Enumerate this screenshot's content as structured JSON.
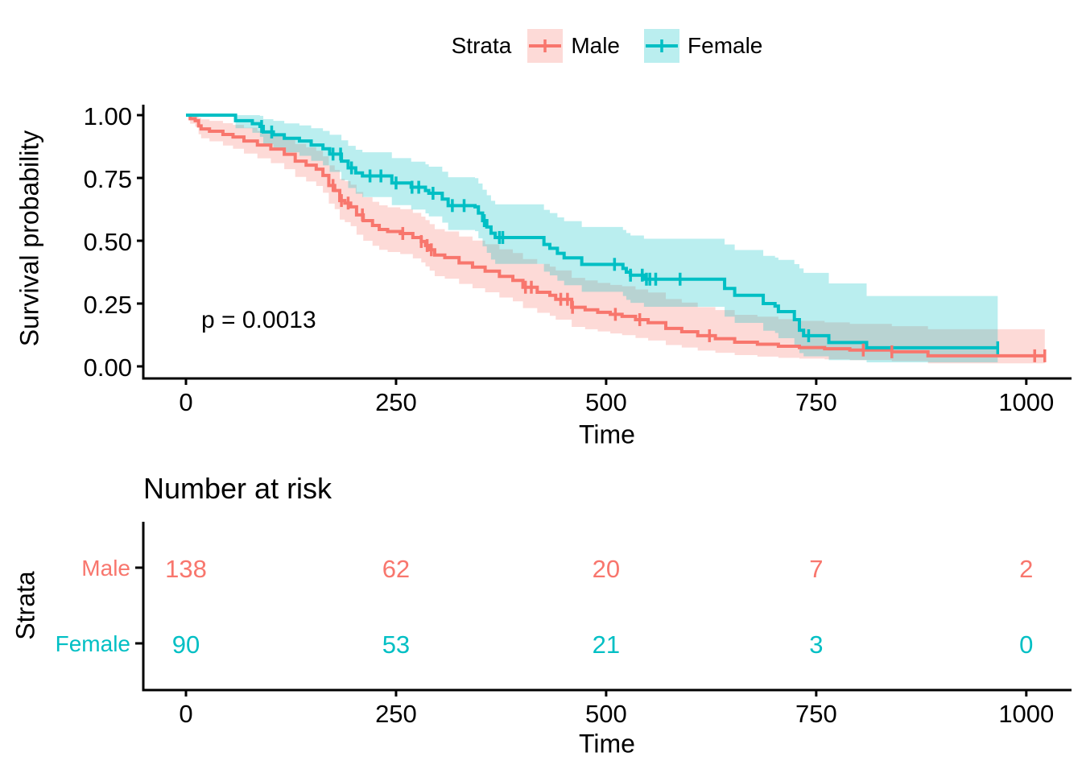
{
  "chart_data": {
    "type": "line",
    "subtype": "kaplan_meier_step_curves_with_ci_and_risk_table",
    "title": "",
    "legend": {
      "title": "Strata",
      "entries": [
        {
          "label": "Male",
          "color": "#F8766D",
          "fill": "rgba(248,118,109,0.27)"
        },
        {
          "label": "Female",
          "color": "#00BFC4",
          "fill": "rgba(0,191,196,0.27)"
        }
      ],
      "position": "top"
    },
    "x": {
      "label": "Time",
      "ticks": [
        0,
        250,
        500,
        750,
        1000
      ],
      "range": [
        0,
        1022
      ]
    },
    "y": {
      "label": "Survival probability",
      "ticks": [
        {
          "v": 1.0,
          "label": "1.00"
        },
        {
          "v": 0.75,
          "label": "0.75"
        },
        {
          "v": 0.5,
          "label": "0.50"
        },
        {
          "v": 0.25,
          "label": "0.25"
        },
        {
          "v": 0.0,
          "label": "0.00"
        }
      ],
      "range": [
        0,
        1
      ]
    },
    "pvalue": "p = 0.0013",
    "grid": false,
    "series": [
      {
        "name": "Male",
        "color": "#F8766D",
        "fill": "rgba(248,118,109,0.27)",
        "steps": [
          [
            0,
            1.0,
            1.0,
            1.0
          ],
          [
            5,
            0.986,
            0.966,
            1.0
          ],
          [
            11,
            0.978,
            0.954,
            1.0
          ],
          [
            15,
            0.957,
            0.924,
            0.99
          ],
          [
            18,
            0.945,
            0.908,
            0.983
          ],
          [
            28,
            0.936,
            0.896,
            0.977
          ],
          [
            44,
            0.923,
            0.879,
            0.968
          ],
          [
            56,
            0.913,
            0.866,
            0.961
          ],
          [
            69,
            0.897,
            0.847,
            0.95
          ],
          [
            85,
            0.881,
            0.828,
            0.937
          ],
          [
            101,
            0.865,
            0.809,
            0.925
          ],
          [
            117,
            0.844,
            0.785,
            0.908
          ],
          [
            130,
            0.817,
            0.754,
            0.885
          ],
          [
            143,
            0.801,
            0.736,
            0.872
          ],
          [
            155,
            0.785,
            0.718,
            0.858
          ],
          [
            163,
            0.76,
            0.691,
            0.836
          ],
          [
            170,
            0.72,
            0.648,
            0.8
          ],
          [
            177,
            0.7,
            0.626,
            0.782
          ],
          [
            183,
            0.66,
            0.584,
            0.746
          ],
          [
            189,
            0.65,
            0.574,
            0.737
          ],
          [
            196,
            0.635,
            0.558,
            0.723
          ],
          [
            203,
            0.603,
            0.524,
            0.694
          ],
          [
            211,
            0.58,
            0.5,
            0.673
          ],
          [
            222,
            0.561,
            0.48,
            0.655
          ],
          [
            230,
            0.545,
            0.464,
            0.641
          ],
          [
            240,
            0.537,
            0.455,
            0.633
          ],
          [
            255,
            0.529,
            0.447,
            0.626
          ],
          [
            270,
            0.513,
            0.43,
            0.611
          ],
          [
            280,
            0.497,
            0.414,
            0.596
          ],
          [
            285,
            0.481,
            0.398,
            0.582
          ],
          [
            290,
            0.464,
            0.381,
            0.566
          ],
          [
            296,
            0.443,
            0.359,
            0.546
          ],
          [
            308,
            0.433,
            0.349,
            0.537
          ],
          [
            325,
            0.412,
            0.328,
            0.517
          ],
          [
            341,
            0.395,
            0.311,
            0.501
          ],
          [
            356,
            0.379,
            0.295,
            0.486
          ],
          [
            373,
            0.358,
            0.274,
            0.466
          ],
          [
            389,
            0.342,
            0.259,
            0.451
          ],
          [
            401,
            0.315,
            0.232,
            0.427
          ],
          [
            418,
            0.295,
            0.213,
            0.408
          ],
          [
            433,
            0.283,
            0.201,
            0.397
          ],
          [
            440,
            0.267,
            0.186,
            0.382
          ],
          [
            459,
            0.235,
            0.157,
            0.352
          ],
          [
            475,
            0.225,
            0.148,
            0.342
          ],
          [
            490,
            0.215,
            0.139,
            0.332
          ],
          [
            505,
            0.207,
            0.131,
            0.324
          ],
          [
            519,
            0.199,
            0.124,
            0.319
          ],
          [
            535,
            0.186,
            0.113,
            0.306
          ],
          [
            550,
            0.174,
            0.103,
            0.294
          ],
          [
            571,
            0.151,
            0.085,
            0.268
          ],
          [
            590,
            0.138,
            0.075,
            0.254
          ],
          [
            609,
            0.122,
            0.063,
            0.236
          ],
          [
            630,
            0.11,
            0.054,
            0.224
          ],
          [
            653,
            0.096,
            0.045,
            0.205
          ],
          [
            680,
            0.088,
            0.039,
            0.198
          ],
          [
            705,
            0.08,
            0.034,
            0.188
          ],
          [
            730,
            0.075,
            0.031,
            0.181
          ],
          [
            760,
            0.07,
            0.028,
            0.175
          ],
          [
            790,
            0.065,
            0.025,
            0.169
          ],
          [
            840,
            0.058,
            0.021,
            0.16
          ],
          [
            883,
            0.042,
            0.012,
            0.148
          ],
          [
            1022,
            0.042,
            0.012,
            0.148
          ]
        ],
        "censor_times": [
          175,
          185,
          193,
          210,
          258,
          280,
          287,
          292,
          404,
          411,
          446,
          454,
          460,
          511,
          540,
          623,
          806,
          840,
          1010,
          1022
        ]
      },
      {
        "name": "Female",
        "color": "#00BFC4",
        "fill": "rgba(0,191,196,0.27)",
        "steps": [
          [
            0,
            1.0,
            1.0,
            1.0
          ],
          [
            59,
            0.978,
            0.948,
            1.0
          ],
          [
            79,
            0.966,
            0.93,
            1.0
          ],
          [
            88,
            0.955,
            0.914,
            0.997
          ],
          [
            92,
            0.933,
            0.884,
            0.984
          ],
          [
            104,
            0.922,
            0.869,
            0.977
          ],
          [
            117,
            0.908,
            0.852,
            0.967
          ],
          [
            135,
            0.897,
            0.838,
            0.959
          ],
          [
            149,
            0.881,
            0.818,
            0.948
          ],
          [
            163,
            0.866,
            0.8,
            0.937
          ],
          [
            171,
            0.845,
            0.774,
            0.922
          ],
          [
            185,
            0.817,
            0.741,
            0.9
          ],
          [
            193,
            0.79,
            0.71,
            0.878
          ],
          [
            202,
            0.77,
            0.687,
            0.862
          ],
          [
            210,
            0.758,
            0.674,
            0.852
          ],
          [
            245,
            0.73,
            0.642,
            0.829
          ],
          [
            268,
            0.713,
            0.624,
            0.815
          ],
          [
            285,
            0.7,
            0.609,
            0.804
          ],
          [
            289,
            0.689,
            0.597,
            0.795
          ],
          [
            305,
            0.666,
            0.572,
            0.775
          ],
          [
            312,
            0.64,
            0.543,
            0.753
          ],
          [
            344,
            0.635,
            0.538,
            0.749
          ],
          [
            348,
            0.61,
            0.51,
            0.728
          ],
          [
            353,
            0.58,
            0.478,
            0.703
          ],
          [
            358,
            0.555,
            0.452,
            0.681
          ],
          [
            363,
            0.53,
            0.425,
            0.659
          ],
          [
            368,
            0.513,
            0.408,
            0.645
          ],
          [
            426,
            0.485,
            0.377,
            0.623
          ],
          [
            433,
            0.47,
            0.362,
            0.61
          ],
          [
            442,
            0.45,
            0.341,
            0.593
          ],
          [
            450,
            0.432,
            0.323,
            0.578
          ],
          [
            471,
            0.406,
            0.297,
            0.555
          ],
          [
            520,
            0.39,
            0.28,
            0.543
          ],
          [
            524,
            0.375,
            0.265,
            0.531
          ],
          [
            529,
            0.363,
            0.253,
            0.521
          ],
          [
            545,
            0.347,
            0.237,
            0.508
          ],
          [
            641,
            0.31,
            0.198,
            0.485
          ],
          [
            653,
            0.283,
            0.173,
            0.463
          ],
          [
            687,
            0.25,
            0.142,
            0.44
          ],
          [
            701,
            0.24,
            0.133,
            0.433
          ],
          [
            705,
            0.218,
            0.112,
            0.424
          ],
          [
            724,
            0.186,
            0.085,
            0.407
          ],
          [
            730,
            0.144,
            0.053,
            0.39
          ],
          [
            735,
            0.122,
            0.04,
            0.372
          ],
          [
            765,
            0.095,
            0.025,
            0.33
          ],
          [
            810,
            0.074,
            0.016,
            0.28
          ],
          [
            966,
            0.074,
            0.016,
            0.28
          ]
        ],
        "censor_times": [
          90,
          102,
          175,
          184,
          197,
          219,
          232,
          250,
          269,
          277,
          294,
          317,
          331,
          355,
          373,
          377,
          510,
          529,
          543,
          548,
          552,
          559,
          588,
          741,
          966
        ]
      }
    ],
    "risk_table": {
      "title": "Number at risk",
      "ylabel": "Strata",
      "xlabel": "Time",
      "times": [
        0,
        250,
        500,
        750,
        1000
      ],
      "rows": [
        {
          "label": "Male",
          "color": "#F8766D",
          "values": [
            138,
            62,
            20,
            7,
            2
          ]
        },
        {
          "label": "Female",
          "color": "#00BFC4",
          "values": [
            90,
            53,
            21,
            3,
            0
          ]
        }
      ]
    }
  }
}
